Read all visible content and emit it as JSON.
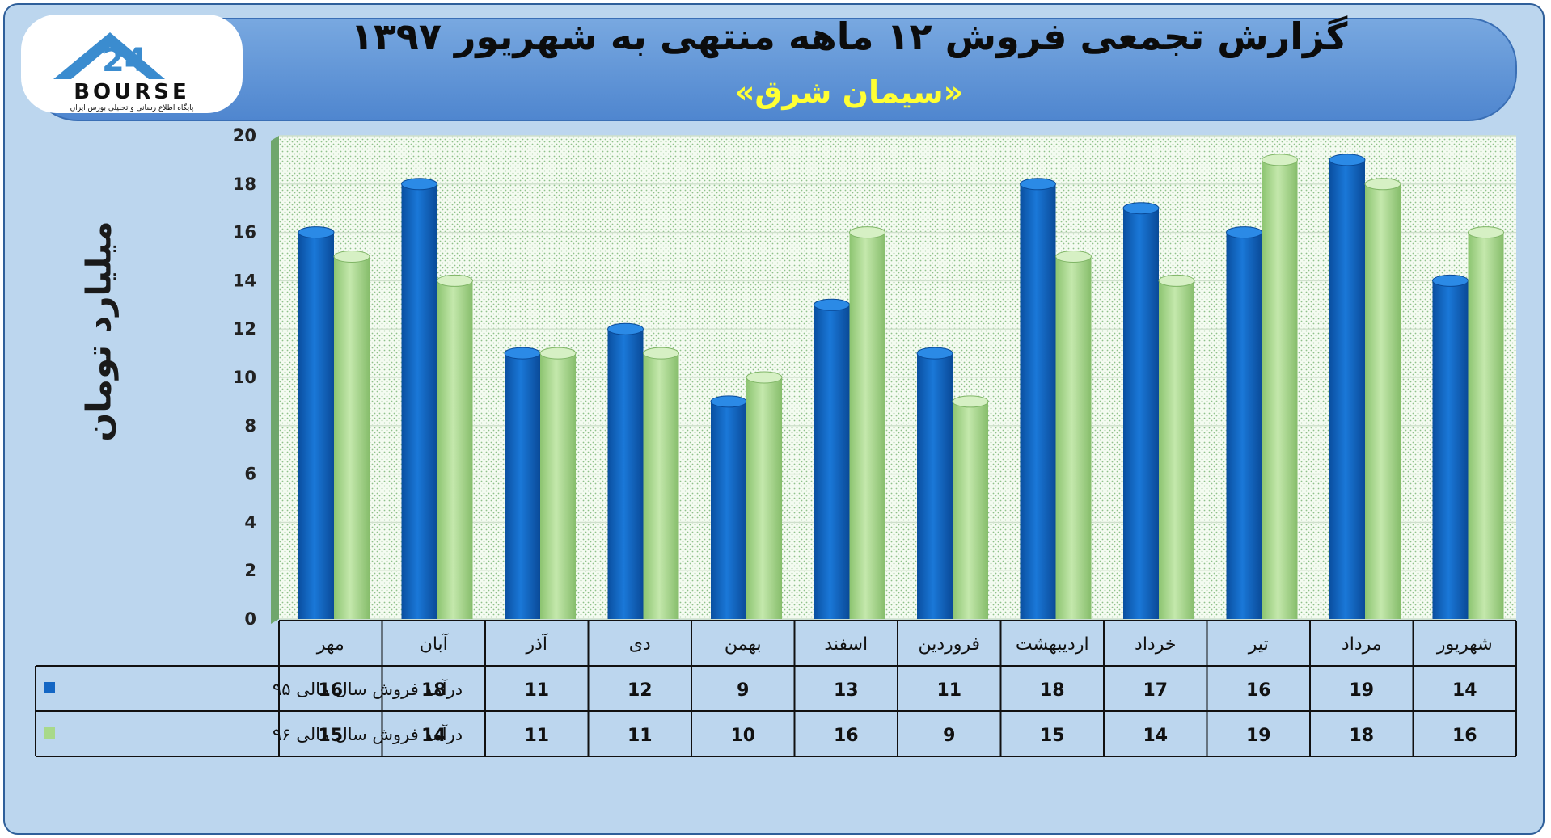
{
  "header": {
    "title": "گزارش تجمعی فروش ۱۲ ماهه منتهی به شهریور ۱۳۹۷",
    "subtitle": "«سیمان شرق»"
  },
  "logo": {
    "text": "BOURSE",
    "number": "24",
    "tagline": "پایگاه اطلاع رسانی و تحلیلی بورس ایران"
  },
  "colors": {
    "series_1": "#1366c4",
    "series_2": "#a8d98a"
  },
  "chart_data": {
    "type": "bar",
    "title": "گزارش تجمعی فروش ۱۲ ماهه منتهی به شهریور ۱۳۹۷",
    "ylabel": "میلیارد تومان",
    "xlabel": "",
    "ylim": [
      0,
      20
    ],
    "yticks": [
      0,
      2,
      4,
      6,
      8,
      10,
      12,
      14,
      16,
      18,
      20
    ],
    "grid": true,
    "legend": "in data table, left",
    "categories": [
      "مهر",
      "آبان",
      "آذر",
      "دی",
      "بهمن",
      "اسفند",
      "فروردین",
      "اردیبهشت",
      "خرداد",
      "تیر",
      "مرداد",
      "شهریور"
    ],
    "series": [
      {
        "name": "درآمد فروش سال مالی ۹۵",
        "values": [
          16,
          18,
          11,
          12,
          9,
          13,
          11,
          18,
          17,
          16,
          19,
          14
        ]
      },
      {
        "name": "درآمد فروش سال مالی ۹۶",
        "values": [
          15,
          14,
          11,
          11,
          10,
          16,
          9,
          15,
          14,
          19,
          18,
          16
        ]
      }
    ]
  }
}
